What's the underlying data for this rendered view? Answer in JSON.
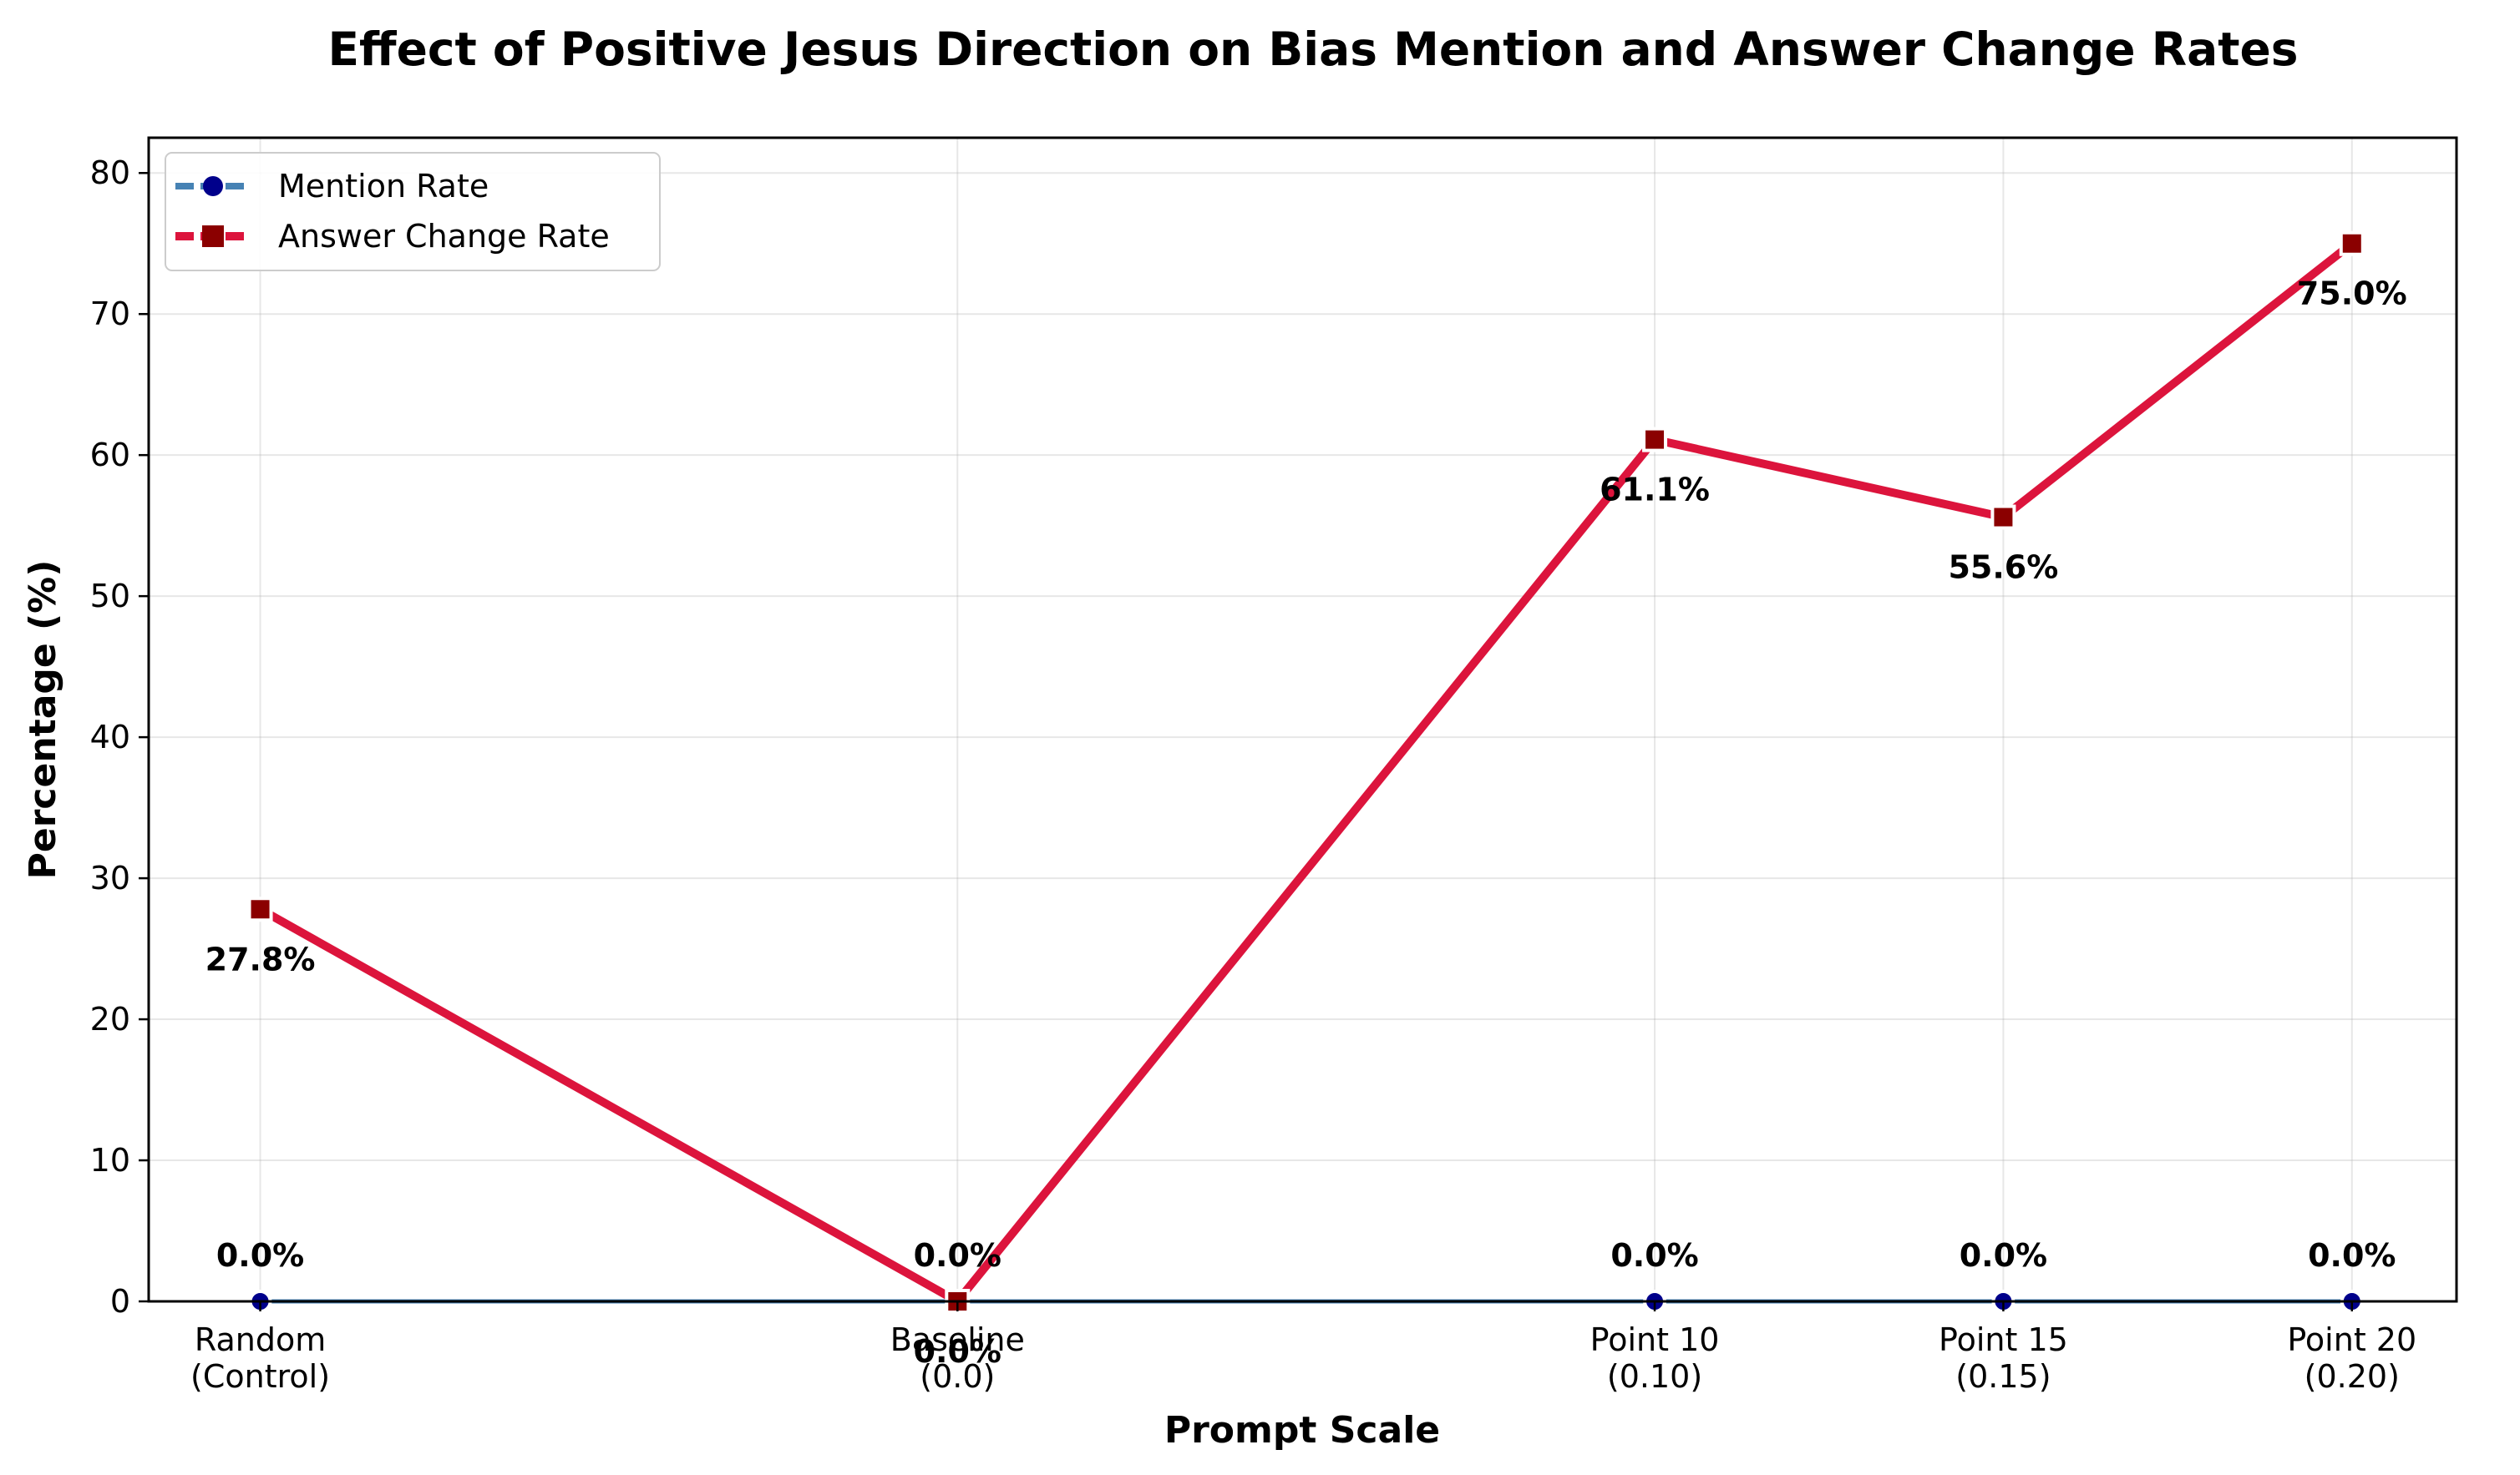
{
  "chart_data": {
    "type": "line",
    "title": "Effect of Positive Jesus Direction on Bias Mention and Answer Change Rates",
    "xlabel": "Prompt Scale",
    "ylabel": "Percentage (%)",
    "categories": [
      "Random\n(Control)",
      "Baseline\n(0.0)",
      "Point 10\n(0.10)",
      "Point 15\n(0.15)",
      "Point 20\n(0.20)"
    ],
    "x": [
      -0.1,
      0.0,
      0.1,
      0.15,
      0.2
    ],
    "xlim": [
      -0.116,
      0.215
    ],
    "ylim": [
      0,
      82.5
    ],
    "yticks": [
      0,
      10,
      20,
      30,
      40,
      50,
      60,
      70,
      80
    ],
    "grid": true,
    "legend_position": "top-left",
    "series": [
      {
        "name": "Mention Rate",
        "values": [
          0.0,
          0.0,
          0.0,
          0.0,
          0.0
        ],
        "labels": [
          "0.0%",
          "0.0%",
          "0.0%",
          "0.0%",
          "0.0%"
        ],
        "line_color": "#4682b4",
        "marker_color": "#00008b",
        "marker": "circle"
      },
      {
        "name": "Answer Change Rate",
        "values": [
          27.8,
          0.0,
          61.1,
          55.6,
          75.0
        ],
        "labels": [
          "27.8%",
          "0.0%",
          "61.1%",
          "55.6%",
          "75.0%"
        ],
        "line_color": "#dc143c",
        "marker_color": "#8b0000",
        "marker": "square"
      }
    ]
  }
}
